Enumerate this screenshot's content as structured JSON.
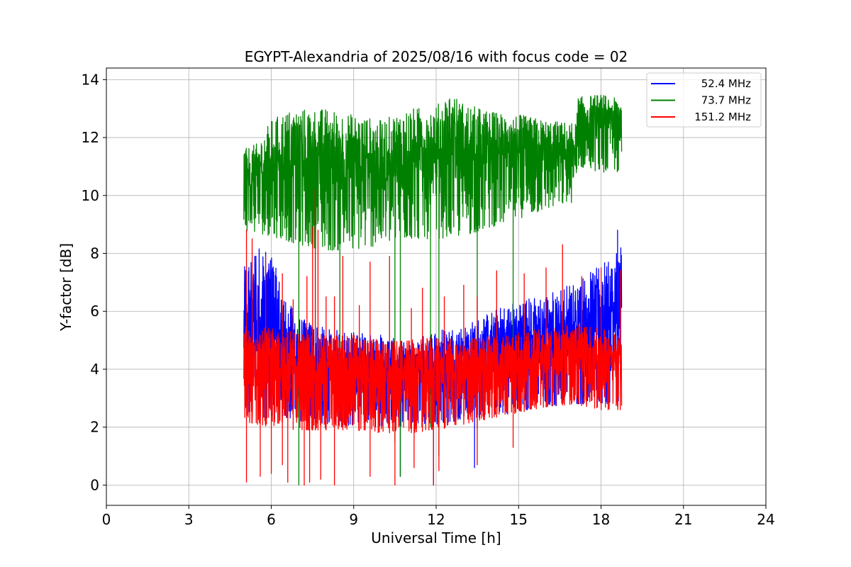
{
  "chart_data": {
    "type": "line",
    "title": "EGYPT-Alexandria of 2025/08/16 with focus code = 02",
    "xlabel": "Universal Time [h]",
    "ylabel": "Y-factor [dB]",
    "xlim": [
      0,
      24
    ],
    "ylim": [
      -0.7,
      14.4
    ],
    "xticks": [
      0,
      3,
      6,
      9,
      12,
      15,
      18,
      21,
      24
    ],
    "yticks": [
      0,
      2,
      4,
      6,
      8,
      10,
      12,
      14
    ],
    "grid": true,
    "legend_position": "upper-right",
    "series": [
      {
        "name": "52.4 MHz",
        "color": "#0000ff",
        "x_range": [
          5.0,
          18.75
        ],
        "baseline": [
          [
            5.0,
            2.4
          ],
          [
            6.0,
            2.3
          ],
          [
            8.0,
            2.1
          ],
          [
            10.0,
            2.0
          ],
          [
            12.0,
            2.1
          ],
          [
            14.0,
            2.4
          ],
          [
            16.0,
            2.7
          ],
          [
            17.0,
            2.8
          ],
          [
            18.75,
            2.7
          ]
        ],
        "upper_envelope": [
          [
            5.0,
            7.5
          ],
          [
            5.5,
            8.3
          ],
          [
            6.0,
            8.0
          ],
          [
            6.5,
            6.5
          ],
          [
            7.0,
            5.8
          ],
          [
            8.0,
            5.4
          ],
          [
            9.0,
            5.3
          ],
          [
            10.0,
            5.2
          ],
          [
            11.0,
            4.9
          ],
          [
            12.0,
            5.4
          ],
          [
            13.0,
            5.5
          ],
          [
            14.0,
            6.0
          ],
          [
            15.0,
            6.4
          ],
          [
            16.0,
            6.6
          ],
          [
            17.0,
            7.0
          ],
          [
            18.0,
            7.6
          ],
          [
            18.75,
            8.4
          ]
        ],
        "dips": [
          [
            10.7,
            0.3
          ],
          [
            11.9,
            0.0
          ],
          [
            13.4,
            0.6
          ]
        ],
        "spikes": [
          [
            18.6,
            8.8
          ]
        ]
      },
      {
        "name": "73.7 MHz",
        "color": "#008000",
        "x_range": [
          5.0,
          18.75
        ],
        "baseline": [
          [
            5.0,
            8.8
          ],
          [
            6.0,
            8.6
          ],
          [
            7.0,
            8.3
          ],
          [
            8.0,
            8.1
          ],
          [
            9.0,
            8.1
          ],
          [
            10.0,
            8.3
          ],
          [
            11.0,
            8.5
          ],
          [
            12.0,
            8.5
          ],
          [
            13.0,
            8.6
          ],
          [
            14.0,
            8.9
          ],
          [
            15.0,
            9.2
          ],
          [
            16.0,
            9.5
          ],
          [
            17.1,
            9.8
          ],
          [
            17.15,
            11.0
          ],
          [
            18.0,
            10.8
          ],
          [
            18.75,
            10.8
          ]
        ],
        "upper_envelope": [
          [
            5.0,
            11.6
          ],
          [
            5.5,
            11.8
          ],
          [
            6.0,
            12.6
          ],
          [
            6.5,
            12.9
          ],
          [
            7.0,
            13.0
          ],
          [
            8.0,
            13.0
          ],
          [
            9.0,
            12.8
          ],
          [
            10.0,
            12.6
          ],
          [
            11.0,
            13.0
          ],
          [
            12.0,
            13.1
          ],
          [
            12.5,
            13.6
          ],
          [
            13.0,
            13.2
          ],
          [
            14.0,
            12.9
          ],
          [
            15.0,
            12.8
          ],
          [
            16.0,
            12.6
          ],
          [
            17.1,
            12.5
          ],
          [
            17.15,
            13.4
          ],
          [
            18.0,
            13.5
          ],
          [
            18.75,
            13.3
          ]
        ],
        "dips": [
          [
            7.0,
            0.0
          ],
          [
            7.6,
            4.5
          ],
          [
            8.5,
            2.6
          ],
          [
            10.5,
            1.5
          ],
          [
            10.7,
            0.3
          ],
          [
            11.8,
            2.0
          ],
          [
            12.1,
            1.0
          ],
          [
            13.5,
            2.0
          ],
          [
            14.8,
            2.5
          ]
        ],
        "spikes": []
      },
      {
        "name": "151.2 MHz",
        "color": "#ff0000",
        "x_range": [
          5.0,
          18.75
        ],
        "baseline": [
          [
            5.0,
            2.2
          ],
          [
            6.0,
            2.0
          ],
          [
            7.0,
            1.9
          ],
          [
            8.0,
            1.9
          ],
          [
            9.0,
            1.9
          ],
          [
            10.0,
            1.8
          ],
          [
            11.0,
            1.8
          ],
          [
            12.0,
            1.9
          ],
          [
            13.0,
            2.1
          ],
          [
            14.0,
            2.3
          ],
          [
            15.0,
            2.5
          ],
          [
            16.0,
            2.7
          ],
          [
            17.0,
            2.8
          ],
          [
            18.0,
            2.6
          ],
          [
            18.75,
            2.6
          ]
        ],
        "upper_envelope": [
          [
            5.0,
            5.6
          ],
          [
            6.0,
            5.4
          ],
          [
            7.0,
            5.3
          ],
          [
            8.0,
            5.2
          ],
          [
            9.0,
            5.2
          ],
          [
            10.0,
            5.0
          ],
          [
            11.0,
            5.0
          ],
          [
            12.0,
            5.1
          ],
          [
            13.0,
            5.0
          ],
          [
            14.0,
            5.2
          ],
          [
            15.0,
            5.3
          ],
          [
            16.0,
            5.4
          ],
          [
            17.0,
            5.6
          ],
          [
            18.0,
            5.4
          ],
          [
            18.75,
            5.2
          ]
        ],
        "dips": [
          [
            5.1,
            0.1
          ],
          [
            5.6,
            0.3
          ],
          [
            6.0,
            0.4
          ],
          [
            6.4,
            0.7
          ],
          [
            6.6,
            0.1
          ],
          [
            7.2,
            0.0
          ],
          [
            7.4,
            0.1
          ],
          [
            7.8,
            0.2
          ],
          [
            8.3,
            0.0
          ],
          [
            9.6,
            0.3
          ],
          [
            10.5,
            0.0
          ],
          [
            11.2,
            0.6
          ],
          [
            11.9,
            0.0
          ],
          [
            12.1,
            0.5
          ],
          [
            13.5,
            0.7
          ],
          [
            14.8,
            1.3
          ]
        ],
        "spikes": [
          [
            5.1,
            8.8
          ],
          [
            5.3,
            8.5
          ],
          [
            5.5,
            6.9
          ],
          [
            5.8,
            7.9
          ],
          [
            6.4,
            7.3
          ],
          [
            6.8,
            6.4
          ],
          [
            7.3,
            7.2
          ],
          [
            7.5,
            8.9
          ],
          [
            7.6,
            10.2
          ],
          [
            7.7,
            8.8
          ],
          [
            8.0,
            6.5
          ],
          [
            8.3,
            6.5
          ],
          [
            8.6,
            7.9
          ],
          [
            9.2,
            6.2
          ],
          [
            9.6,
            7.7
          ],
          [
            10.3,
            7.9
          ],
          [
            11.1,
            6.1
          ],
          [
            11.5,
            6.8
          ],
          [
            12.3,
            6.5
          ],
          [
            13.0,
            6.9
          ],
          [
            13.5,
            6.5
          ],
          [
            14.2,
            7.4
          ],
          [
            15.2,
            7.3
          ],
          [
            16.0,
            7.5
          ],
          [
            16.6,
            8.3
          ],
          [
            17.3,
            7.2
          ],
          [
            18.0,
            7.5
          ],
          [
            18.7,
            7.4
          ]
        ]
      }
    ]
  }
}
